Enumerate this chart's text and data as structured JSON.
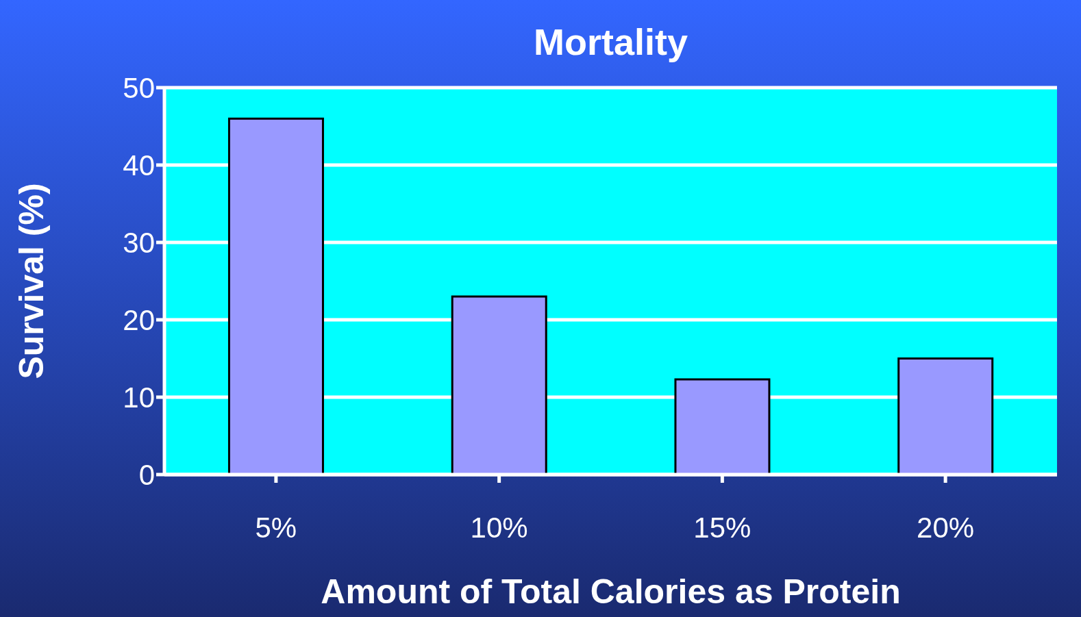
{
  "chart_data": {
    "type": "bar",
    "title": "Mortality",
    "xlabel": "Amount of Total Calories as Protein",
    "ylabel": "Survival (%)",
    "categories": [
      "5%",
      "10%",
      "15%",
      "20%"
    ],
    "values": [
      46,
      23,
      12.3,
      15
    ],
    "color": "#9999ff",
    "ylim": [
      0,
      50
    ],
    "yticks": [
      0,
      10,
      20,
      30,
      40,
      50
    ],
    "grid": "y"
  }
}
